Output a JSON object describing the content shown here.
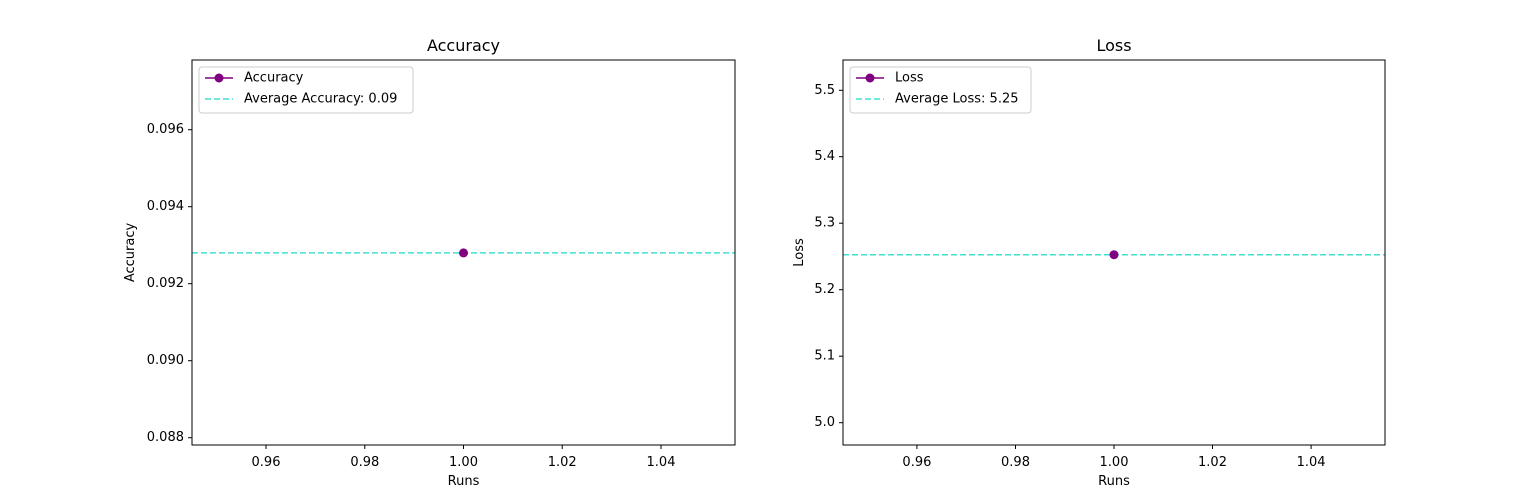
{
  "chart_data": [
    {
      "type": "line",
      "title": "Accuracy",
      "xlabel": "Runs",
      "ylabel": "Accuracy",
      "xlim": [
        0.945,
        1.055
      ],
      "ylim": [
        0.08781,
        0.09781
      ],
      "xticks": [
        0.96,
        0.98,
        1.0,
        1.02,
        1.04
      ],
      "xtick_labels": [
        "0.96",
        "0.98",
        "1.00",
        "1.02",
        "1.04"
      ],
      "yticks": [
        0.088,
        0.09,
        0.092,
        0.094,
        0.096
      ],
      "ytick_labels": [
        "0.088",
        "0.090",
        "0.092",
        "0.094",
        "0.096"
      ],
      "series": [
        {
          "name": "Accuracy",
          "x": [
            1.0
          ],
          "y": [
            0.0928
          ],
          "color": "#800080",
          "marker": "circle"
        }
      ],
      "average": {
        "label": "Average Accuracy: 0.09",
        "value": 0.0928,
        "color": "#40e0d0",
        "style": "dashed"
      },
      "legend": "top-left",
      "grid": false
    },
    {
      "type": "line",
      "title": "Loss",
      "xlabel": "Runs",
      "ylabel": "Loss",
      "xlim": [
        0.945,
        1.055
      ],
      "ylim": [
        4.9665,
        5.5455
      ],
      "xticks": [
        0.96,
        0.98,
        1.0,
        1.02,
        1.04
      ],
      "xtick_labels": [
        "0.96",
        "0.98",
        "1.00",
        "1.02",
        "1.04"
      ],
      "yticks": [
        5.0,
        5.1,
        5.2,
        5.3,
        5.4,
        5.5
      ],
      "ytick_labels": [
        "5.0",
        "5.1",
        "5.2",
        "5.3",
        "5.4",
        "5.5"
      ],
      "series": [
        {
          "name": "Loss",
          "x": [
            1.0
          ],
          "y": [
            5.2527
          ],
          "color": "#800080",
          "marker": "circle"
        }
      ],
      "average": {
        "label": "Average Loss: 5.25",
        "value": 5.2527,
        "color": "#40e0d0",
        "style": "dashed"
      },
      "legend": "top-left",
      "grid": false
    }
  ]
}
